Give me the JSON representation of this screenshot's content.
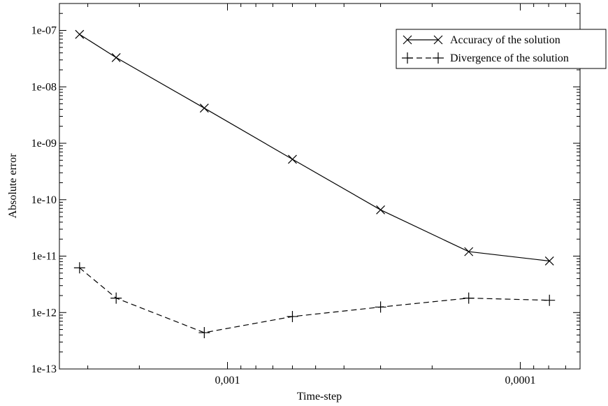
{
  "chart_data": {
    "type": "line",
    "title": "",
    "xlabel": "Time-step",
    "ylabel": "Absolute error",
    "x_scale": "log",
    "x_reversed": true,
    "y_scale": "log",
    "xlim": [
      0.00375,
      6.25e-05
    ],
    "ylim": [
      1e-13,
      3e-07
    ],
    "x_ticks": [
      {
        "value": 0.001,
        "label": "0,001"
      },
      {
        "value": 0.0001,
        "label": "0,0001"
      }
    ],
    "y_ticks": [
      {
        "value": 1e-13,
        "label": "1e-13"
      },
      {
        "value": 1e-12,
        "label": "1e-12"
      },
      {
        "value": 1e-11,
        "label": "1e-11"
      },
      {
        "value": 1e-10,
        "label": "1e-10"
      },
      {
        "value": 1e-09,
        "label": "1e-09"
      },
      {
        "value": 1e-08,
        "label": "1e-08"
      },
      {
        "value": 1e-07,
        "label": "1e-07"
      }
    ],
    "legend_position": "top-right",
    "series": [
      {
        "name": "Accuracy of the solution",
        "marker": "x",
        "line_style": "solid",
        "x": [
          0.0032,
          0.0024,
          0.0012,
          0.0006,
          0.0003,
          0.00015,
          7.95e-05
        ],
        "y": [
          8.5e-08,
          3.3e-08,
          4.2e-09,
          5.2e-10,
          6.6e-11,
          1.2e-11,
          8.2e-12
        ]
      },
      {
        "name": "Divergence of the solution",
        "marker": "+",
        "line_style": "dashed",
        "x": [
          0.0032,
          0.0024,
          0.0012,
          0.0006,
          0.0003,
          0.00015,
          7.95e-05
        ],
        "y": [
          6.2e-12,
          1.8e-12,
          4.4e-13,
          8.5e-13,
          1.25e-12,
          1.8e-12,
          1.65e-12
        ]
      }
    ]
  }
}
